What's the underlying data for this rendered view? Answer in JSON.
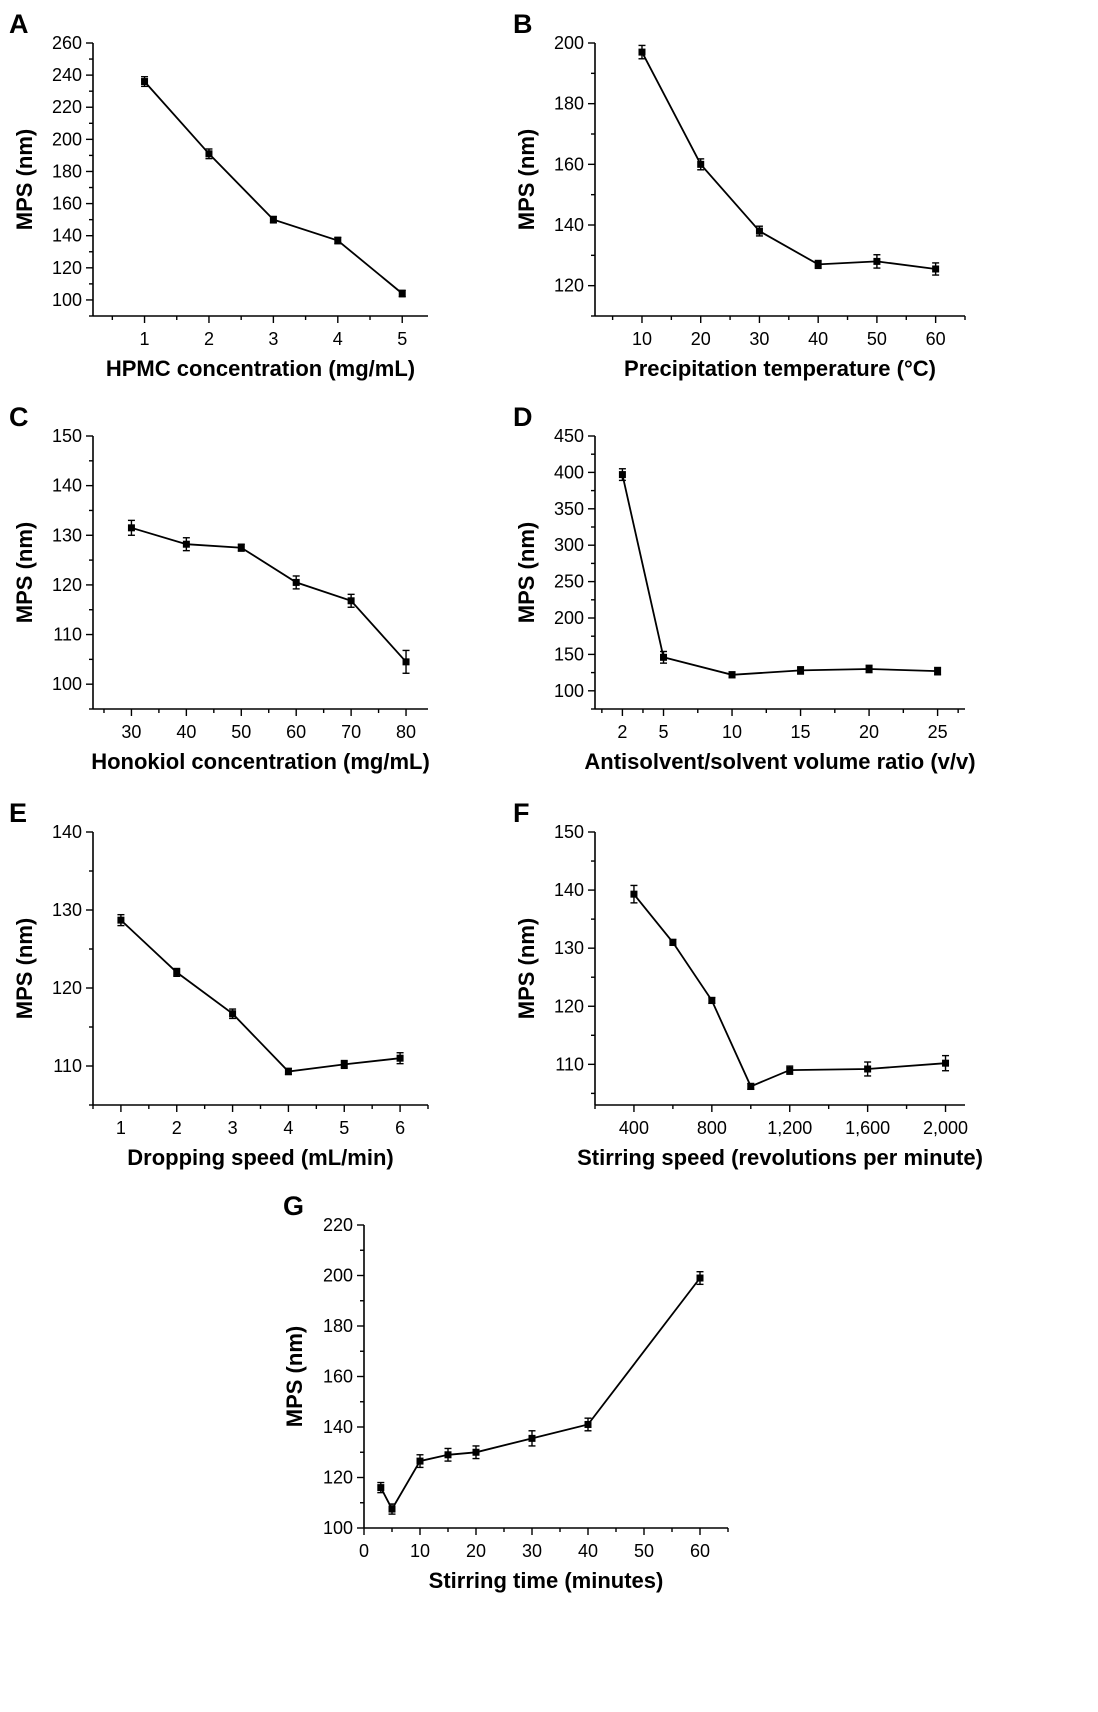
{
  "chart_data": [
    {
      "type": "line",
      "panel": "A",
      "xlabel": "HPMC concentration (mg/mL)",
      "ylabel": "MPS (nm)",
      "xticks": [
        "1",
        "2",
        "3",
        "4",
        "5"
      ],
      "yticks": [
        "100",
        "120",
        "140",
        "160",
        "180",
        "200",
        "220",
        "240",
        "260"
      ],
      "xlim": [
        0.2,
        5.4
      ],
      "ylim": [
        90,
        260
      ],
      "x": [
        1,
        2,
        3,
        4,
        5
      ],
      "y": [
        236,
        191,
        150,
        137,
        104
      ],
      "err": [
        3,
        3,
        2,
        2,
        2
      ]
    },
    {
      "type": "line",
      "panel": "B",
      "xlabel": "Precipitation temperature (°C)",
      "ylabel": "MPS (nm)",
      "xticks": [
        "10",
        "20",
        "30",
        "40",
        "50",
        "60"
      ],
      "yticks": [
        "120",
        "140",
        "160",
        "180",
        "200"
      ],
      "xlim": [
        2,
        65
      ],
      "ylim": [
        110,
        200
      ],
      "x": [
        10,
        20,
        30,
        40,
        50,
        60
      ],
      "y": [
        197,
        160,
        138,
        127,
        128,
        125.5
      ],
      "err": [
        2.2,
        1.8,
        1.6,
        1.3,
        2.2,
        2
      ]
    },
    {
      "type": "line",
      "panel": "C",
      "xlabel": "Honokiol concentration (mg/mL)",
      "ylabel": "MPS (nm)",
      "xticks": [
        "30",
        "40",
        "50",
        "60",
        "70",
        "80"
      ],
      "yticks": [
        "100",
        "110",
        "120",
        "130",
        "140",
        "150"
      ],
      "xlim": [
        23,
        84
      ],
      "ylim": [
        95,
        150
      ],
      "x": [
        30,
        40,
        50,
        60,
        70,
        80
      ],
      "y": [
        131.5,
        128.2,
        127.5,
        120.5,
        116.8,
        104.5
      ],
      "err": [
        1.5,
        1.3,
        0.7,
        1.3,
        1.3,
        2.3
      ]
    },
    {
      "type": "line",
      "panel": "D",
      "xlabel": "Antisolvent/solvent volume ratio (v/v)",
      "ylabel": "MPS (nm)",
      "xticks": [
        "2",
        "5",
        "10",
        "15",
        "20",
        "25"
      ],
      "yticks": [
        "100",
        "150",
        "200",
        "250",
        "300",
        "350",
        "400",
        "450"
      ],
      "xlim": [
        0,
        27
      ],
      "ylim": [
        75,
        450
      ],
      "x": [
        2,
        5,
        10,
        15,
        20,
        25
      ],
      "y": [
        397,
        146,
        122,
        128,
        130,
        127
      ],
      "err": [
        8,
        8,
        4,
        5,
        5,
        5
      ]
    },
    {
      "type": "line",
      "panel": "E",
      "xlabel": "Dropping speed (mL/min)",
      "ylabel": "MPS (nm)",
      "xticks": [
        "1",
        "2",
        "3",
        "4",
        "5",
        "6"
      ],
      "yticks": [
        "110",
        "120",
        "130",
        "140"
      ],
      "xlim": [
        0.5,
        6.5
      ],
      "ylim": [
        105,
        140
      ],
      "x": [
        1,
        2,
        3,
        4,
        5,
        6
      ],
      "y": [
        128.7,
        122,
        116.7,
        109.3,
        110.2,
        111
      ],
      "err": [
        0.7,
        0.5,
        0.6,
        0.4,
        0.5,
        0.7
      ]
    },
    {
      "type": "line",
      "panel": "F",
      "xlabel": "Stirring speed (revolutions per minute)",
      "ylabel": "MPS (nm)",
      "xticks": [
        "400",
        "800",
        "1,200",
        "1,600",
        "2,000"
      ],
      "xtick_values": [
        400,
        800,
        1200,
        1600,
        2000
      ],
      "yticks": [
        "110",
        "120",
        "130",
        "140",
        "150"
      ],
      "xlim": [
        200,
        2100
      ],
      "ylim": [
        103,
        150
      ],
      "x": [
        400,
        600,
        800,
        1000,
        1200,
        1600,
        2000
      ],
      "y": [
        139.3,
        131,
        121,
        106.2,
        109,
        109.2,
        110.2
      ],
      "err": [
        1.5,
        0.5,
        0.5,
        0.5,
        0.7,
        1.2,
        1.3
      ]
    },
    {
      "type": "line",
      "panel": "G",
      "xlabel": "Stirring time (minutes)",
      "ylabel": "MPS (nm)",
      "xticks": [
        "0",
        "10",
        "20",
        "30",
        "40",
        "50",
        "60"
      ],
      "yticks": [
        "100",
        "120",
        "140",
        "160",
        "180",
        "200",
        "220"
      ],
      "xlim": [
        0,
        65
      ],
      "ylim": [
        100,
        220
      ],
      "x": [
        3,
        5,
        10,
        15,
        20,
        30,
        40,
        60
      ],
      "y": [
        116,
        107.5,
        126.5,
        129,
        130,
        135.5,
        141,
        199
      ],
      "err": [
        2,
        2,
        2.5,
        2.5,
        2.5,
        3,
        2.5,
        2.5
      ]
    }
  ]
}
